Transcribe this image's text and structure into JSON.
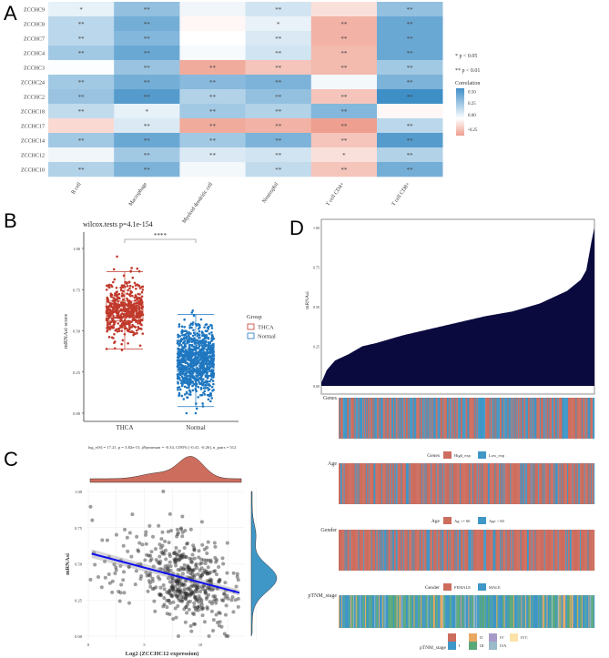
{
  "panel_labels": [
    "A",
    "B",
    "C",
    "D"
  ],
  "chart_data": [
    {
      "type": "heatmap",
      "panel": "A",
      "rows": [
        "ZCCHC9",
        "ZCCHC8",
        "ZCCHC7",
        "ZCCHC4",
        "ZCCHC3",
        "ZCCHC24",
        "ZCCHC2",
        "ZCCHC18",
        "ZCCHC17",
        "ZCCHC14",
        "ZCCHC12",
        "ZCCHC10"
      ],
      "columns": [
        "B cell",
        "Macrophage",
        "Myeloid dendritic cell",
        "Neutrophil",
        "T cell CD4+",
        "T cell CD8+"
      ],
      "values": [
        [
          0.08,
          0.35,
          0.05,
          0.15,
          -0.08,
          0.35
        ],
        [
          0.22,
          0.45,
          -0.02,
          0.07,
          -0.2,
          0.48
        ],
        [
          0.22,
          0.4,
          0.0,
          0.12,
          -0.2,
          0.48
        ],
        [
          0.3,
          0.48,
          0.03,
          0.15,
          -0.18,
          0.48
        ],
        [
          0.01,
          0.33,
          -0.22,
          -0.15,
          -0.18,
          0.3
        ],
        [
          0.3,
          0.45,
          0.38,
          0.42,
          0.04,
          0.42
        ],
        [
          0.33,
          0.55,
          0.25,
          0.35,
          -0.15,
          0.62
        ],
        [
          0.2,
          0.08,
          0.3,
          0.25,
          0.4,
          -0.02
        ],
        [
          -0.1,
          0.12,
          -0.22,
          -0.2,
          -0.25,
          0.22
        ],
        [
          0.3,
          0.48,
          0.3,
          0.42,
          -0.15,
          0.55
        ],
        [
          0.05,
          0.3,
          0.12,
          0.15,
          -0.08,
          0.25
        ],
        [
          0.25,
          0.42,
          0.04,
          0.2,
          -0.15,
          0.45
        ]
      ],
      "significance": [
        [
          "*",
          "**",
          "",
          "**",
          "",
          "**"
        ],
        [
          "**",
          "**",
          "",
          "*",
          "**",
          "**"
        ],
        [
          "**",
          "**",
          "",
          "**",
          "**",
          "**"
        ],
        [
          "**",
          "**",
          "",
          "**",
          "**",
          "**"
        ],
        [
          "",
          "**",
          "**",
          "**",
          "**",
          "**"
        ],
        [
          "**",
          "**",
          "**",
          "**",
          "",
          "**"
        ],
        [
          "**",
          "**",
          "**",
          "**",
          "**",
          "**"
        ],
        [
          "**",
          "*",
          "**",
          "**",
          "**",
          ""
        ],
        [
          "",
          "**",
          "**",
          "**",
          "**",
          "**"
        ],
        [
          "**",
          "**",
          "**",
          "**",
          "**",
          "**"
        ],
        [
          "",
          "**",
          "**",
          "**",
          "*",
          "**"
        ],
        [
          "**",
          "**",
          "",
          "**",
          "**",
          "**"
        ]
      ],
      "sig_legend": [
        "* p < 0.05",
        "** p < 0.01"
      ],
      "legend_title": "Correlation",
      "legend_ticks": [
        "0.50",
        "0.25",
        "0.00",
        "-0.25"
      ],
      "colors": {
        "high": "#3f8fc7",
        "mid": "#ffffff",
        "low": "#ef9f8f"
      }
    },
    {
      "type": "box",
      "panel": "B",
      "title": "wilcox.tests p=4.1e-154",
      "ylabel": "mRNAsi score",
      "categories": [
        "THCA",
        "Normal"
      ],
      "significance": "****",
      "boxes": [
        {
          "name": "THCA",
          "min": 0.39,
          "q1": 0.56,
          "median": 0.62,
          "q3": 0.68,
          "max": 0.86,
          "color": "#c0392b"
        },
        {
          "name": "Normal",
          "min": 0.04,
          "q1": 0.25,
          "median": 0.32,
          "q3": 0.39,
          "max": 0.6,
          "color": "#1f77c0"
        }
      ],
      "yticks": [
        "0.00",
        "0.25",
        "0.50",
        "0.75",
        "1.00"
      ],
      "ylim": [
        0,
        1
      ],
      "legend_title": "Group",
      "legend": [
        "THCA",
        "Normal"
      ]
    },
    {
      "type": "scatter",
      "panel": "C",
      "subtitle": "log_e(S) = 17.21, p = 3.82e-15, ρ̂Spearman = -0.34, CI95% [-0.41, -0.26], n_pairs = 512",
      "xlabel": "Log2 (ZCCHC12 expression)",
      "ylabel": "mRNAsi",
      "xticks": [
        "0",
        "5",
        "10"
      ],
      "yticks": [
        "0.00",
        "0.25",
        "0.50",
        "0.75",
        "1.00"
      ],
      "xlim": [
        0,
        13.5
      ],
      "ylim": [
        0,
        1
      ],
      "fit": {
        "x": [
          0.3,
          13.5
        ],
        "y": [
          0.57,
          0.3
        ],
        "color": "#1010ee"
      },
      "marginal_colors": {
        "x": "#cd6d5e",
        "y": "#3f97c7"
      }
    },
    {
      "type": "area",
      "panel": "D",
      "ylabel": "mRNAsi",
      "yticks": [
        "0.00",
        "0.25",
        "0.50",
        "0.75",
        "1.00"
      ],
      "ylim": [
        0,
        1
      ],
      "curve_quantiles": [
        0,
        0.02,
        0.05,
        0.1,
        0.15,
        0.2,
        0.3,
        0.4,
        0.5,
        0.6,
        0.7,
        0.8,
        0.9,
        0.95,
        0.97,
        0.99,
        1
      ],
      "curve_values": [
        0.02,
        0.1,
        0.16,
        0.2,
        0.25,
        0.27,
        0.32,
        0.36,
        0.4,
        0.44,
        0.47,
        0.52,
        0.6,
        0.67,
        0.73,
        0.92,
        1.0
      ],
      "fill": "#0a0a3f",
      "tracks": [
        {
          "name": "Genes",
          "legend": [
            {
              "label": "High_exp",
              "color": "#cd6d5e"
            },
            {
              "label": "Low_exp",
              "color": "#3f97c7"
            }
          ],
          "p_second": 0.45
        },
        {
          "name": "Age",
          "legend": [
            {
              "label": "Ag <= 60",
              "color": "#cd6d5e"
            },
            {
              "label": "Age > 60",
              "color": "#3f97c7"
            }
          ],
          "p_second": 0.25
        },
        {
          "name": "Gender",
          "legend": [
            {
              "label": "FEMALE",
              "color": "#cd6d5e"
            },
            {
              "label": "MALE",
              "color": "#3f97c7"
            }
          ],
          "p_second": 0.27
        },
        {
          "name": "pTNM_stage",
          "legend": [
            {
              "label": "I",
              "color": "#3f97c7"
            },
            {
              "label": "II",
              "color": "#e8a862"
            },
            {
              "label": "III",
              "color": "#5aa87a"
            },
            {
              "label": "IV",
              "color": "#a79ac9"
            },
            {
              "label": "IVA",
              "color": "#9bbac8"
            },
            {
              "label": "IVC",
              "color": "#fbe3a8"
            },
            {
              "label": "",
              "color": "#cd6d5e"
            }
          ]
        }
      ]
    }
  ]
}
